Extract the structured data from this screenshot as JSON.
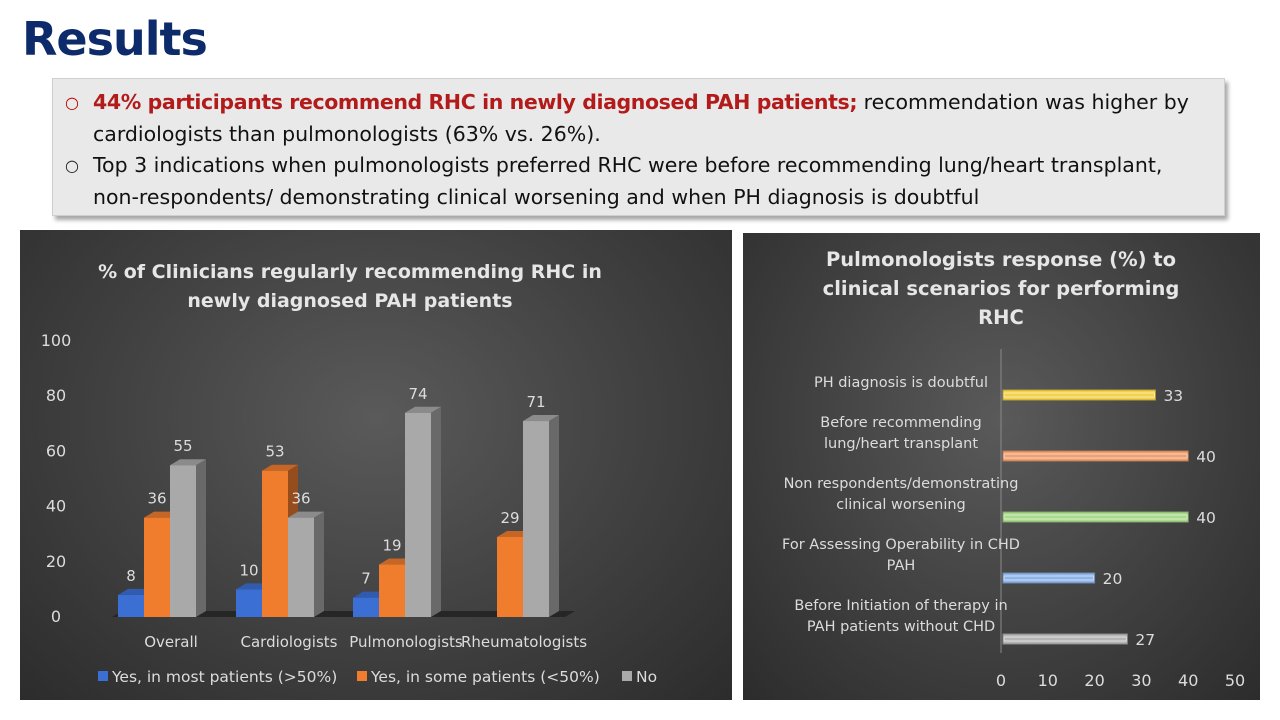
{
  "slide": {
    "title": "Results",
    "bullets": [
      {
        "highlight": "44% participants recommend RHC in newly diagnosed PAH patients;",
        "text": " recommendation was higher by cardiologists than pulmonologists (63% vs. 26%)."
      },
      {
        "highlight": "",
        "text": "Top 3 indications when pulmonologists preferred RHC were before recommending lung/heart transplant, non-respondents/ demonstrating clinical worsening and when PH diagnosis is doubtful"
      }
    ],
    "bullet_icons": [
      "circle-outline-icon",
      "circle-outline-icon"
    ]
  },
  "chart_data": [
    {
      "type": "bar",
      "title": "% of Clinicians regularly recommending RHC in newly diagnosed PAH patients",
      "title_lines": [
        "% of Clinicians regularly recommending RHC in",
        "newly diagnosed PAH patients"
      ],
      "categories": [
        "Overall",
        "Cardiologists",
        "Pulmonologists",
        "Rheumatologists"
      ],
      "series": [
        {
          "name": "Yes, in most patients (>50%)",
          "values": [
            8,
            10,
            7,
            null
          ],
          "color": "#3b6fd4"
        },
        {
          "name": "Yes, in some patients (<50%)",
          "values": [
            36,
            53,
            19,
            29
          ],
          "color": "#f07c2e"
        },
        {
          "name": "No",
          "values": [
            55,
            36,
            74,
            71
          ],
          "color": "#a9a9a9"
        }
      ],
      "ylim": [
        0,
        100
      ],
      "yticks": [
        0,
        20,
        40,
        60,
        80,
        100
      ],
      "legend": "bottom",
      "grid": false
    },
    {
      "type": "bar",
      "orientation": "horizontal",
      "title": "Pulmonologists response (%) to clinical scenarios for performing RHC",
      "title_lines": [
        "Pulmonologists response (%) to",
        "clinical scenarios for performing",
        "RHC"
      ],
      "categories": [
        "PH diagnosis is doubtful",
        "Before recommending lung/heart transplant",
        "Non respondents/demonstrating clinical worsening",
        "For Assessing Operability in CHD PAH",
        "Before Initiation of therapy in PAH patients without CHD"
      ],
      "category_lines": [
        [
          "PH diagnosis is doubtful"
        ],
        [
          "Before recommending",
          "lung/heart transplant"
        ],
        [
          "Non respondents/demonstrating",
          "clinical worsening"
        ],
        [
          "For Assessing Operability in CHD",
          "PAH"
        ],
        [
          "Before Initiation of therapy in",
          "PAH patients without CHD"
        ]
      ],
      "values": [
        33,
        40,
        40,
        20,
        27
      ],
      "colors": [
        "#f2d24b",
        "#f0a070",
        "#a9d98a",
        "#8fb4e8",
        "#b5b5b5"
      ],
      "xlim": [
        0,
        50
      ],
      "xticks": [
        0,
        10,
        20,
        30,
        40,
        50
      ],
      "grid": false
    }
  ]
}
